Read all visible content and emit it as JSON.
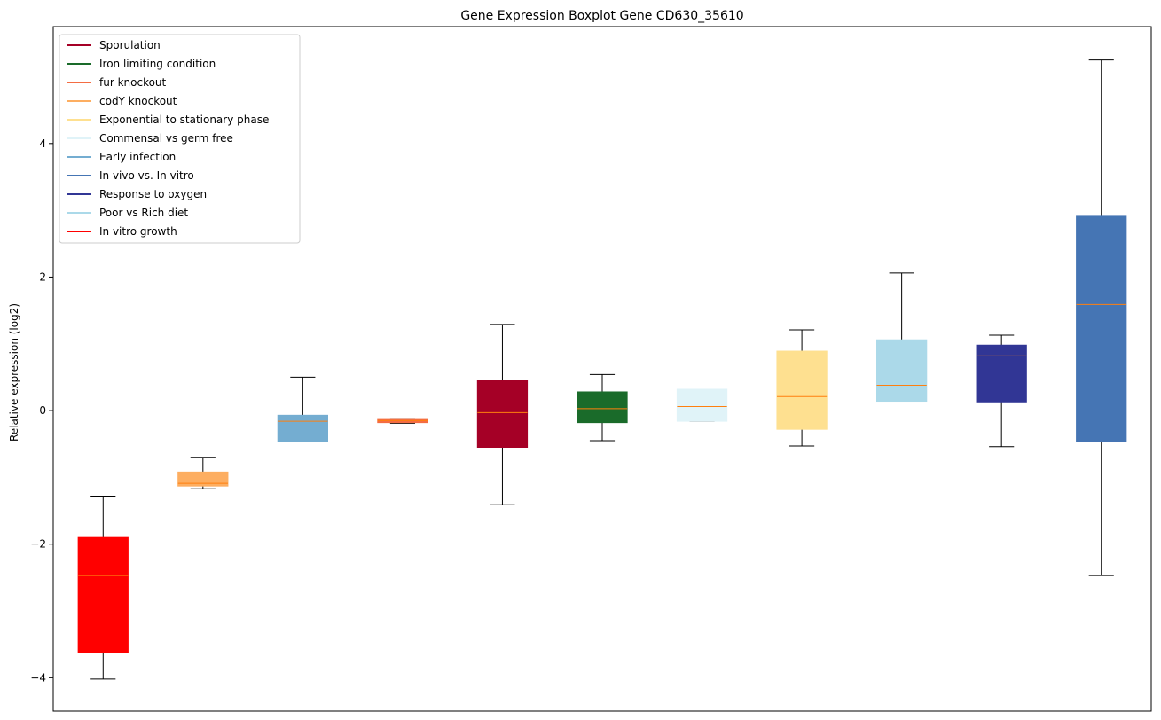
{
  "chart_data": {
    "type": "box",
    "title": "Gene Expression Boxplot Gene CD630_35610",
    "xlabel": "",
    "ylabel": "Relative expression (log2)",
    "ylim": [
      -4.5,
      5.75
    ],
    "yticks": [
      -4,
      -2,
      0,
      2,
      4
    ],
    "ytick_labels": [
      "−4",
      "−2",
      "0",
      "2",
      "4"
    ],
    "grid": false,
    "legend_position": "top-left",
    "legend": [
      {
        "label": "Sporulation",
        "color": "#a50026"
      },
      {
        "label": "Iron limiting condition",
        "color": "#1a6b2a"
      },
      {
        "label": "fur knockout",
        "color": "#f46d43"
      },
      {
        "label": "codY knockout",
        "color": "#fdae61"
      },
      {
        "label": "Exponential to stationary phase",
        "color": "#fee090"
      },
      {
        "label": "Commensal vs germ free",
        "color": "#e0f3f8"
      },
      {
        "label": "Early infection",
        "color": "#74add1"
      },
      {
        "label": "In vivo vs. In vitro",
        "color": "#4575b4"
      },
      {
        "label": "Response to oxygen",
        "color": "#313695"
      },
      {
        "label": "Poor vs Rich diet",
        "color": "#abd9e9"
      },
      {
        "label": "In vitro growth",
        "color": "#ff0000"
      }
    ],
    "boxes": [
      {
        "group": "In vitro growth",
        "color": "#ff0000",
        "whisker_low": -4.02,
        "q1": -3.62,
        "median": -2.47,
        "q3": -1.9,
        "whisker_high": -1.28
      },
      {
        "group": "codY knockout",
        "color": "#fdae61",
        "whisker_low": -1.17,
        "q1": -1.13,
        "median": -1.09,
        "q3": -0.92,
        "whisker_high": -0.7
      },
      {
        "group": "Early infection",
        "color": "#74add1",
        "whisker_low": -0.47,
        "q1": -0.47,
        "median": -0.16,
        "q3": -0.07,
        "whisker_high": 0.5
      },
      {
        "group": "fur knockout",
        "color": "#f46d43",
        "whisker_low": -0.19,
        "q1": -0.18,
        "median": -0.15,
        "q3": -0.12,
        "whisker_high": -0.12
      },
      {
        "group": "Sporulation",
        "color": "#a50026",
        "whisker_low": -1.41,
        "q1": -0.55,
        "median": -0.03,
        "q3": 0.45,
        "whisker_high": 1.29
      },
      {
        "group": "Iron limiting condition",
        "color": "#1a6b2a",
        "whisker_low": -0.45,
        "q1": -0.18,
        "median": 0.03,
        "q3": 0.28,
        "whisker_high": 0.54
      },
      {
        "group": "Commensal vs germ free",
        "color": "#e0f3f8",
        "whisker_low": -0.16,
        "q1": -0.16,
        "median": 0.06,
        "q3": 0.32,
        "whisker_high": 0.32
      },
      {
        "group": "Exponential to stationary phase",
        "color": "#fee090",
        "whisker_low": -0.53,
        "q1": -0.28,
        "median": 0.21,
        "q3": 0.89,
        "whisker_high": 1.21
      },
      {
        "group": "Poor vs Rich diet",
        "color": "#abd9e9",
        "whisker_low": 0.14,
        "q1": 0.14,
        "median": 0.38,
        "q3": 1.06,
        "whisker_high": 2.06
      },
      {
        "group": "Response to oxygen",
        "color": "#313695",
        "whisker_low": -0.54,
        "q1": 0.13,
        "median": 0.82,
        "q3": 0.98,
        "whisker_high": 1.13
      },
      {
        "group": "In vivo vs. In vitro",
        "color": "#4575b4",
        "whisker_low": -2.47,
        "q1": -0.47,
        "median": 1.59,
        "q3": 2.91,
        "whisker_high": 5.25
      }
    ],
    "median_color": "#ff7f0e"
  }
}
